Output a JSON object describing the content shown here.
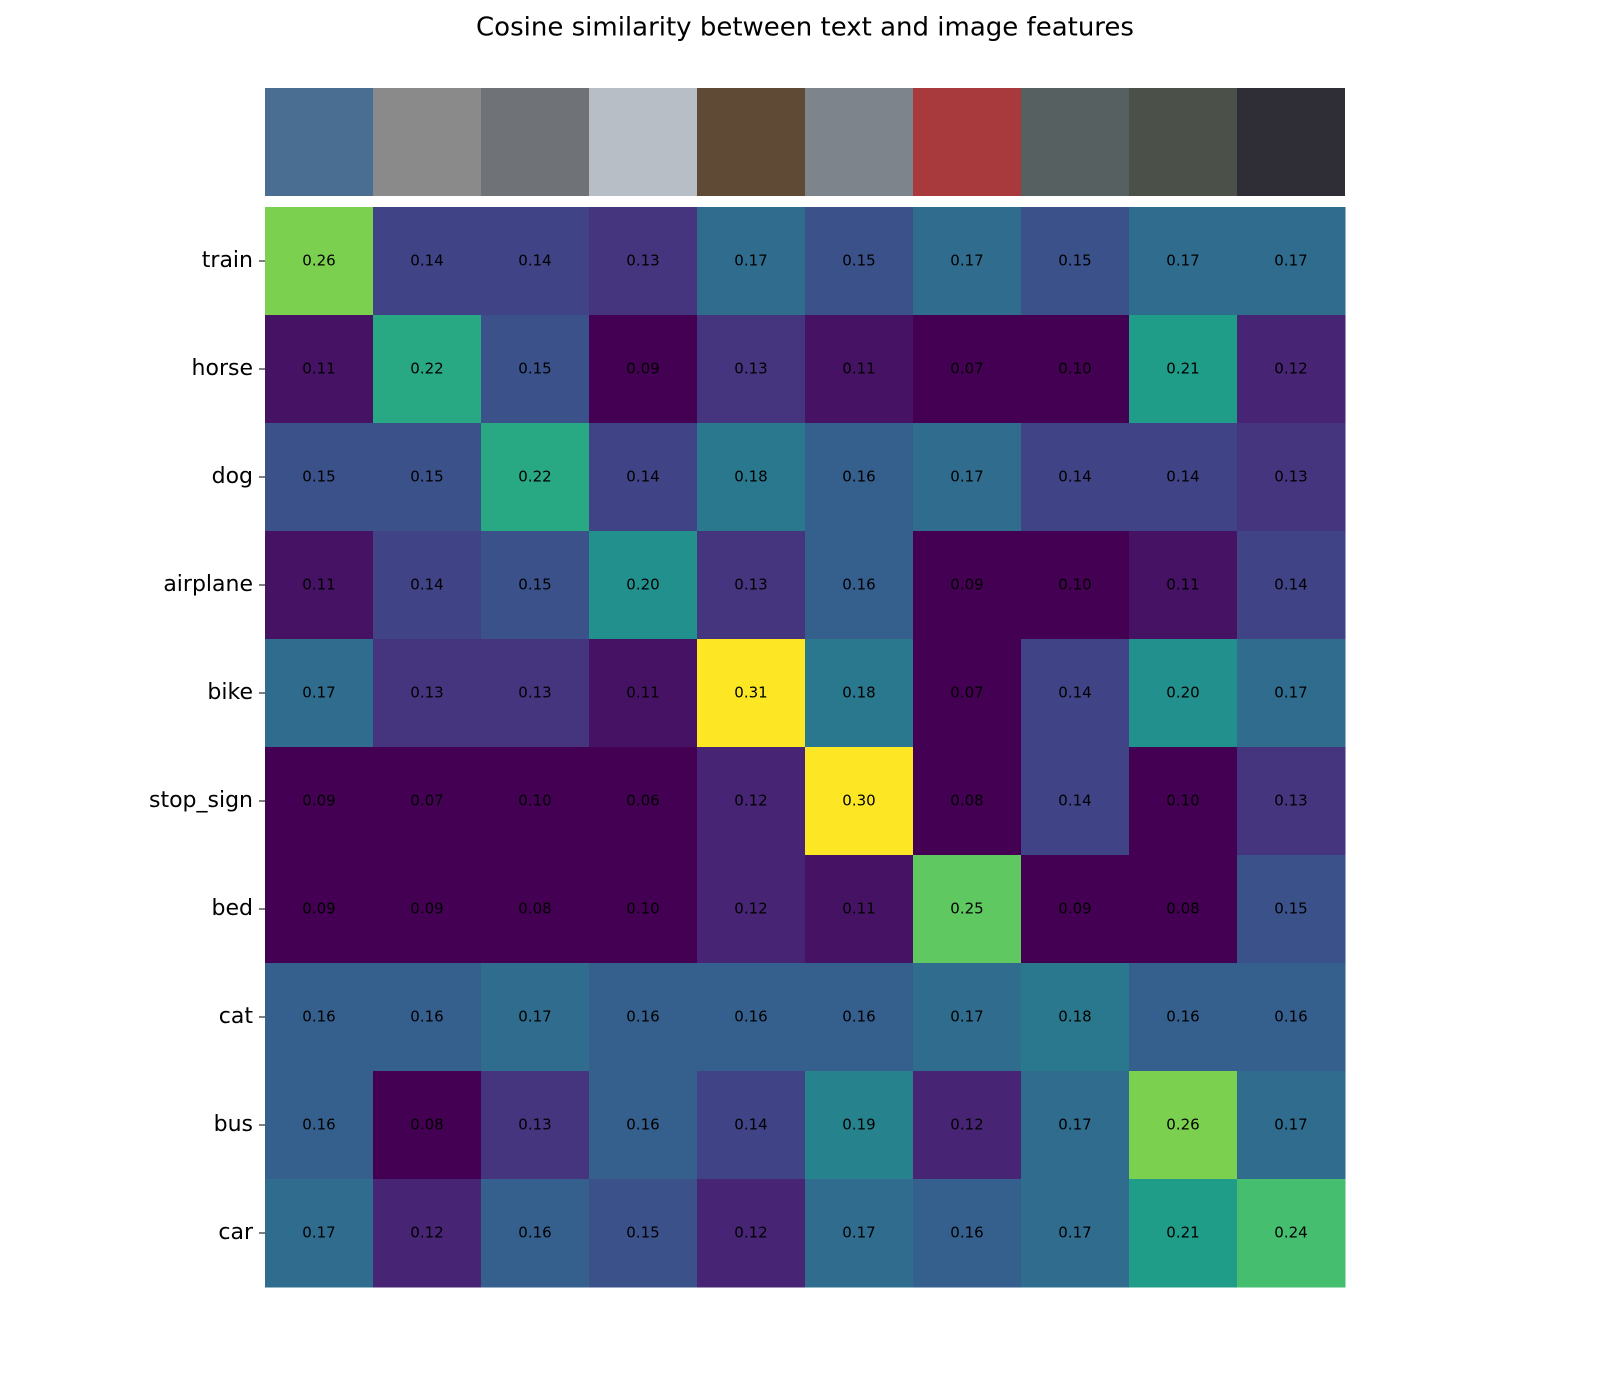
{
  "chart_data": {
    "type": "heatmap",
    "title": "Cosine similarity between text and image features",
    "x_categories": [
      null,
      null,
      null,
      null,
      null,
      null,
      null,
      null,
      null,
      null
    ],
    "y_categories": [
      "train",
      "horse",
      "dog",
      "airplane",
      "bike",
      "stop_sign",
      "bed",
      "cat",
      "bus",
      "car"
    ],
    "values": [
      [
        0.26,
        0.14,
        0.14,
        0.13,
        0.17,
        0.15,
        0.17,
        0.15,
        0.17,
        0.17
      ],
      [
        0.11,
        0.22,
        0.15,
        0.09,
        0.13,
        0.11,
        0.07,
        0.1,
        0.21,
        0.12
      ],
      [
        0.15,
        0.15,
        0.22,
        0.14,
        0.18,
        0.16,
        0.17,
        0.14,
        0.14,
        0.13
      ],
      [
        0.11,
        0.14,
        0.15,
        0.2,
        0.13,
        0.16,
        0.09,
        0.1,
        0.11,
        0.14
      ],
      [
        0.17,
        0.13,
        0.13,
        0.11,
        0.31,
        0.18,
        0.07,
        0.14,
        0.2,
        0.17
      ],
      [
        0.09,
        0.07,
        0.1,
        0.06,
        0.12,
        0.3,
        0.08,
        0.14,
        0.1,
        0.13
      ],
      [
        0.09,
        0.09,
        0.08,
        0.1,
        0.12,
        0.11,
        0.25,
        0.09,
        0.08,
        0.15
      ],
      [
        0.16,
        0.16,
        0.17,
        0.16,
        0.16,
        0.16,
        0.17,
        0.18,
        0.16,
        0.16
      ],
      [
        0.16,
        0.08,
        0.13,
        0.16,
        0.14,
        0.19,
        0.12,
        0.17,
        0.26,
        0.17
      ],
      [
        0.17,
        0.12,
        0.16,
        0.15,
        0.12,
        0.17,
        0.16,
        0.17,
        0.21,
        0.24
      ]
    ],
    "value_labels": [
      [
        "0.26",
        "0.14",
        "0.14",
        "0.13",
        "0.17",
        "0.15",
        "0.17",
        "0.15",
        "0.17",
        "0.17"
      ],
      [
        "0.11",
        "0.22",
        "0.15",
        "0.09",
        "0.13",
        "0.11",
        "0.07",
        "0.10",
        "0.21",
        "0.12"
      ],
      [
        "0.15",
        "0.15",
        "0.22",
        "0.14",
        "0.18",
        "0.16",
        "0.17",
        "0.14",
        "0.14",
        "0.13"
      ],
      [
        "0.11",
        "0.14",
        "0.15",
        "0.20",
        "0.13",
        "0.16",
        "0.09",
        "0.10",
        "0.11",
        "0.14"
      ],
      [
        "0.17",
        "0.13",
        "0.13",
        "0.11",
        "0.31",
        "0.18",
        "0.07",
        "0.14",
        "0.20",
        "0.17"
      ],
      [
        "0.09",
        "0.07",
        "0.10",
        "0.06",
        "0.12",
        "0.30",
        "0.08",
        "0.14",
        "0.10",
        "0.13"
      ],
      [
        "0.09",
        "0.09",
        "0.08",
        "0.10",
        "0.12",
        "0.11",
        "0.25",
        "0.09",
        "0.08",
        "0.15"
      ],
      [
        "0.16",
        "0.16",
        "0.17",
        "0.16",
        "0.16",
        "0.16",
        "0.17",
        "0.18",
        "0.16",
        "0.16"
      ],
      [
        "0.16",
        "0.08",
        "0.13",
        "0.16",
        "0.14",
        "0.19",
        "0.12",
        "0.17",
        "0.26",
        "0.17"
      ],
      [
        "0.17",
        "0.12",
        "0.16",
        "0.15",
        "0.12",
        "0.17",
        "0.16",
        "0.17",
        "0.21",
        "0.24"
      ]
    ],
    "clim": [
      0.1,
      0.3
    ],
    "colormap": "viridis"
  }
}
